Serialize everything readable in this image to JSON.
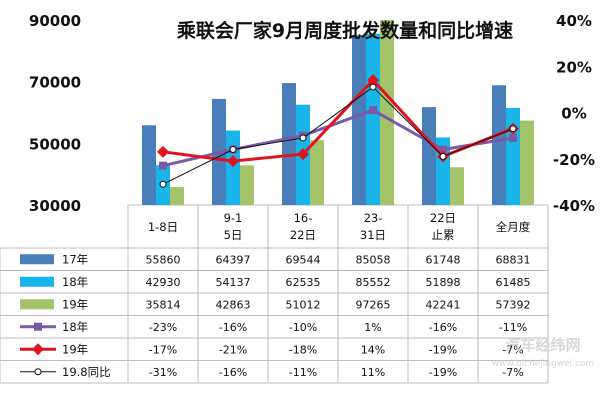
{
  "chart_data": {
    "type": "bar",
    "title": "乘联会厂家9月周度批发数量和同比增速",
    "categories": [
      "1-8日",
      "9-15日",
      "16-22日",
      "23-31日",
      "22日止累",
      "全月度"
    ],
    "y_left": {
      "ticks": [
        "90000",
        "70000",
        "50000",
        "30000"
      ],
      "range": [
        30000,
        90000
      ]
    },
    "y_right": {
      "ticks": [
        "40%",
        "20%",
        "0%",
        "-20%",
        "-40%"
      ],
      "range": [
        -40,
        40
      ]
    },
    "bar_series": [
      {
        "name": "17年",
        "color": "#4a7ebb",
        "values": [
          55860,
          64397,
          69544,
          85058,
          61748,
          68831
        ],
        "labels": [
          "55860",
          "64397",
          "69544",
          "85058",
          "61748",
          "68831"
        ]
      },
      {
        "name": "18年",
        "color": "#17b5ea",
        "values": [
          42930,
          54137,
          62535,
          85552,
          51898,
          61485
        ],
        "labels": [
          "42930",
          "54137",
          "62535",
          "85552",
          "51898",
          "61485"
        ]
      },
      {
        "name": "19年",
        "color": "#a4c46a",
        "values": [
          35814,
          42863,
          51012,
          97265,
          42241,
          57392
        ],
        "labels": [
          "35814",
          "42863",
          "51012",
          "97265",
          "42241",
          "57392"
        ]
      }
    ],
    "line_series": [
      {
        "name": "18年",
        "color": "#7a59a6",
        "marker": "square",
        "width": 3,
        "values": [
          -23,
          -16,
          -10,
          1,
          -16,
          -11
        ],
        "labels": [
          "-23%",
          "-16%",
          "-10%",
          "1%",
          "-16%",
          "-11%"
        ]
      },
      {
        "name": "19年",
        "color": "#e0141e",
        "marker": "diamond",
        "width": 3,
        "values": [
          -17,
          -21,
          -18,
          14,
          -19,
          -7
        ],
        "labels": [
          "-17%",
          "-21%",
          "-18%",
          "14%",
          "-19%",
          "-7%"
        ]
      },
      {
        "name": "19.8同比",
        "color": "#111111",
        "marker": "circle",
        "width": 1,
        "values": [
          -31,
          -16,
          -11,
          11,
          -19,
          -7
        ],
        "labels": [
          "-31%",
          "-16%",
          "-11%",
          "11%",
          "-19%",
          "-7%"
        ]
      }
    ]
  },
  "watermark": {
    "main": "汽车经纬网",
    "sub": "www.qichejingwei.com"
  }
}
